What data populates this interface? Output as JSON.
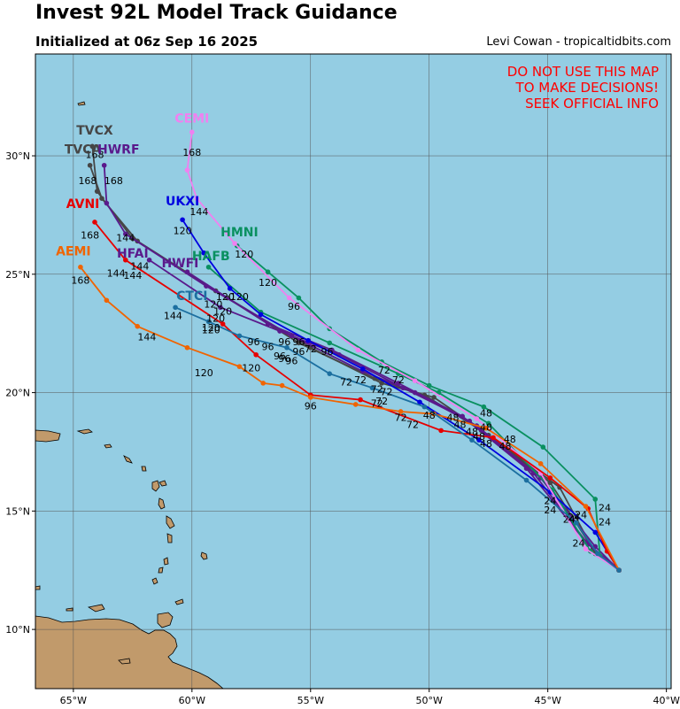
{
  "title": "Invest 92L Model Track Guidance",
  "subtitle": "Initialized at 06z Sep 16 2025",
  "credit": "Levi Cowan - tropicaltidbits.com",
  "warning": [
    "DO NOT USE THIS MAP",
    "TO MAKE DECISIONS!",
    "SEEK OFFICIAL INFO"
  ],
  "colors": {
    "ocean": "#94cde3",
    "land": "#c19a6b",
    "warning": "#ff0000"
  },
  "chart_data": {
    "type": "map",
    "grid": true,
    "xlim": [
      -66.6,
      -39.8
    ],
    "ylim": [
      7.5,
      34.3
    ],
    "x_ticks": [
      {
        "v": -65,
        "label": "65°W"
      },
      {
        "v": -60,
        "label": "60°W"
      },
      {
        "v": -55,
        "label": "55°W"
      },
      {
        "v": -50,
        "label": "50°W"
      },
      {
        "v": -45,
        "label": "45°W"
      },
      {
        "v": -40,
        "label": "40°W"
      }
    ],
    "y_ticks": [
      {
        "v": 10,
        "label": "10°N"
      },
      {
        "v": 15,
        "label": "15°N"
      },
      {
        "v": 20,
        "label": "20°N"
      },
      {
        "v": 25,
        "label": "25°N"
      },
      {
        "v": 30,
        "label": "30°N"
      }
    ],
    "tracks": [
      {
        "name": "TVCX",
        "color": "#464646",
        "label_pos": [
          -64.1,
          30.9
        ],
        "points": [
          [
            -42.0,
            12.5
          ],
          [
            -43.0,
            13.2
          ],
          [
            -44.5,
            16.0
          ],
          [
            -47.5,
            18.2
          ],
          [
            -49.8,
            19.8
          ],
          [
            -52.0,
            20.4
          ],
          [
            -55.0,
            21.9
          ],
          [
            -58.5,
            24.0
          ],
          [
            -62.5,
            26.5
          ],
          [
            -64.0,
            28.5
          ],
          [
            -64.2,
            30.4
          ]
        ],
        "hour_labels": [
          {
            "t": "168",
            "x": -64.1,
            "y": 29.9
          }
        ]
      },
      {
        "name": "TVCA",
        "color": "#464646",
        "label_pos": [
          -64.6,
          30.1
        ],
        "points": [
          [
            -42.0,
            12.5
          ],
          [
            -43.1,
            13.4
          ],
          [
            -44.9,
            16.2
          ],
          [
            -47.8,
            18.4
          ],
          [
            -50.2,
            19.9
          ],
          [
            -52.3,
            20.6
          ],
          [
            -55.5,
            22.1
          ],
          [
            -59.0,
            24.3
          ],
          [
            -62.3,
            26.4
          ],
          [
            -63.8,
            28.2
          ],
          [
            -64.3,
            29.6
          ]
        ],
        "hour_labels": [
          {
            "t": "168",
            "x": -64.4,
            "y": 28.8
          }
        ]
      },
      {
        "name": "HWRF",
        "color": "#5a1a8c",
        "label_pos": [
          -63.1,
          30.1
        ],
        "points": [
          [
            -42.0,
            12.5
          ],
          [
            -43.0,
            13.5
          ],
          [
            -45.3,
            16.4
          ],
          [
            -48.0,
            18.6
          ],
          [
            -50.6,
            20.0
          ],
          [
            -52.8,
            20.9
          ],
          [
            -55.8,
            22.4
          ],
          [
            -59.4,
            24.5
          ],
          [
            -62.8,
            26.7
          ],
          [
            -63.6,
            28.0
          ],
          [
            -63.7,
            29.6
          ]
        ],
        "hour_labels": [
          {
            "t": "168",
            "x": -63.3,
            "y": 28.8
          },
          {
            "t": "144",
            "x": -62.8,
            "y": 26.4
          }
        ]
      },
      {
        "name": "HFAI",
        "color": "#5a1a8c",
        "label_pos": [
          -62.5,
          25.7
        ],
        "points": [
          [
            -42.0,
            12.5
          ],
          [
            -43.3,
            13.6
          ],
          [
            -45.6,
            16.6
          ],
          [
            -48.3,
            18.8
          ],
          [
            -51.1,
            20.2
          ],
          [
            -53.8,
            21.6
          ],
          [
            -56.3,
            22.6
          ],
          [
            -58.8,
            23.6
          ],
          [
            -61.8,
            25.6
          ]
        ],
        "hour_labels": [
          {
            "t": "144",
            "x": -62.5,
            "y": 24.8
          }
        ]
      },
      {
        "name": "HWFI",
        "color": "#5a1a8c",
        "label_pos": [
          -60.5,
          25.3
        ],
        "points": [
          [
            -42.0,
            12.5
          ],
          [
            -43.4,
            13.7
          ],
          [
            -45.9,
            16.8
          ],
          [
            -48.6,
            19.0
          ],
          [
            -51.3,
            20.4
          ],
          [
            -54.1,
            21.8
          ],
          [
            -56.8,
            22.9
          ],
          [
            -60.2,
            25.1
          ]
        ],
        "hour_labels": [
          {
            "t": "120",
            "x": -59.1,
            "y": 23.6
          }
        ]
      },
      {
        "name": "HMNI",
        "color": "#0a9060",
        "label_pos": [
          -58.0,
          26.6
        ],
        "points": [
          [
            -42.0,
            12.5
          ],
          [
            -42.8,
            13.1
          ],
          [
            -43.0,
            15.5
          ],
          [
            -45.2,
            17.7
          ],
          [
            -47.7,
            19.4
          ],
          [
            -50.0,
            20.3
          ],
          [
            -52.0,
            21.3
          ],
          [
            -54.2,
            22.7
          ],
          [
            -55.5,
            24.0
          ],
          [
            -56.8,
            25.1
          ],
          [
            -58.1,
            26.2
          ]
        ],
        "hour_labels": [
          {
            "t": "120",
            "x": -57.8,
            "y": 25.7
          },
          {
            "t": "96",
            "x": -55.7,
            "y": 23.5
          }
        ]
      },
      {
        "name": "HAFB",
        "color": "#0a9060",
        "label_pos": [
          -59.2,
          25.6
        ],
        "points": [
          [
            -42.0,
            12.5
          ],
          [
            -43.2,
            13.3
          ],
          [
            -44.8,
            15.9
          ],
          [
            -47.5,
            18.7
          ],
          [
            -49.6,
            20.0
          ],
          [
            -51.3,
            20.8
          ],
          [
            -54.2,
            22.1
          ],
          [
            -57.1,
            23.4
          ],
          [
            -59.3,
            25.3
          ]
        ],
        "hour_labels": [
          {
            "t": "120",
            "x": -56.8,
            "y": 24.5
          },
          {
            "t": "96",
            "x": -54.3,
            "y": 21.6
          }
        ]
      },
      {
        "name": "UKXI",
        "color": "#0000e0",
        "label_pos": [
          -60.4,
          27.9
        ],
        "points": [
          [
            -42.0,
            12.5
          ],
          [
            -43.0,
            14.1
          ],
          [
            -44.9,
            15.8
          ],
          [
            -47.9,
            18.0
          ],
          [
            -50.4,
            19.6
          ],
          [
            -52.8,
            21.0
          ],
          [
            -55.1,
            22.2
          ],
          [
            -57.1,
            23.3
          ],
          [
            -58.4,
            24.4
          ],
          [
            -59.5,
            25.9
          ],
          [
            -60.4,
            27.3
          ]
        ],
        "hour_labels": [
          {
            "t": "120",
            "x": -60.4,
            "y": 26.7
          },
          {
            "t": "120",
            "x": -58.0,
            "y": 23.9
          }
        ]
      },
      {
        "name": "CEMI",
        "color": "#f080f0",
        "label_pos": [
          -60.0,
          31.4
        ],
        "points": [
          [
            -42.0,
            12.5
          ],
          [
            -43.4,
            13.4
          ],
          [
            -45.3,
            16.6
          ],
          [
            -48.0,
            18.9
          ],
          [
            -50.6,
            20.5
          ],
          [
            -53.0,
            21.8
          ],
          [
            -55.9,
            24.0
          ],
          [
            -58.2,
            26.3
          ],
          [
            -59.8,
            28.2
          ],
          [
            -60.2,
            29.4
          ],
          [
            -60.0,
            31.0
          ]
        ],
        "hour_labels": [
          {
            "t": "168",
            "x": -60.0,
            "y": 30.0
          },
          {
            "t": "144",
            "x": -59.7,
            "y": 27.5
          }
        ]
      },
      {
        "name": "AVNI",
        "color": "#e60000",
        "label_pos": [
          -64.6,
          27.8
        ],
        "points": [
          [
            -42.0,
            12.5
          ],
          [
            -42.5,
            13.3
          ],
          [
            -43.3,
            15.1
          ],
          [
            -44.9,
            16.4
          ],
          [
            -47.3,
            18.1
          ],
          [
            -49.5,
            18.4
          ],
          [
            -52.9,
            19.7
          ],
          [
            -55.0,
            19.9
          ],
          [
            -57.3,
            21.6
          ],
          [
            -58.7,
            22.9
          ],
          [
            -62.8,
            25.6
          ],
          [
            -64.1,
            27.2
          ]
        ],
        "hour_labels": [
          {
            "t": "168",
            "x": -64.3,
            "y": 26.5
          },
          {
            "t": "144",
            "x": -63.2,
            "y": 24.9
          },
          {
            "t": "120",
            "x": -57.5,
            "y": 20.9
          },
          {
            "t": "96",
            "x": -57.4,
            "y": 22.0
          }
        ]
      },
      {
        "name": "AEMI",
        "color": "#f06400",
        "label_pos": [
          -65.0,
          25.8
        ],
        "points": [
          [
            -42.0,
            12.5
          ],
          [
            -43.4,
            15.2
          ],
          [
            -45.3,
            17.0
          ],
          [
            -47.6,
            18.5
          ],
          [
            -49.8,
            19.1
          ],
          [
            -51.2,
            19.2
          ],
          [
            -53.1,
            19.5
          ],
          [
            -55.0,
            19.8
          ],
          [
            -56.2,
            20.3
          ],
          [
            -57.0,
            20.4
          ],
          [
            -58.0,
            21.1
          ],
          [
            -60.2,
            21.9
          ],
          [
            -62.3,
            22.8
          ],
          [
            -63.6,
            23.9
          ],
          [
            -64.7,
            25.3
          ]
        ],
        "hour_labels": [
          {
            "t": "168",
            "x": -64.7,
            "y": 24.6
          },
          {
            "t": "144",
            "x": -61.9,
            "y": 22.2
          },
          {
            "t": "120",
            "x": -59.5,
            "y": 20.7
          },
          {
            "t": "96",
            "x": -55.0,
            "y": 19.3
          }
        ]
      },
      {
        "name": "CTCI",
        "color": "#1c6fa0",
        "label_pos": [
          -60.0,
          23.9
        ],
        "points": [
          [
            -42.0,
            12.5
          ],
          [
            -42.9,
            13.2
          ],
          [
            -43.8,
            14.5
          ],
          [
            -45.9,
            16.3
          ],
          [
            -48.2,
            18.0
          ],
          [
            -50.2,
            19.4
          ],
          [
            -52.4,
            20.2
          ],
          [
            -54.2,
            20.8
          ],
          [
            -56.0,
            21.9
          ],
          [
            -58.0,
            22.4
          ],
          [
            -59.3,
            23.0
          ],
          [
            -60.7,
            23.6
          ]
        ],
        "hour_labels": [
          {
            "t": "144",
            "x": -60.8,
            "y": 23.1
          },
          {
            "t": "120",
            "x": -59.2,
            "y": 22.5
          }
        ]
      }
    ],
    "extra_hour_labels": [
      {
        "t": "24",
        "x": -44.9,
        "y": 15.3
      },
      {
        "t": "24",
        "x": -44.9,
        "y": 14.9
      },
      {
        "t": "24",
        "x": -43.6,
        "y": 14.7
      },
      {
        "t": "24",
        "x": -43.9,
        "y": 14.6
      },
      {
        "t": "24",
        "x": -42.6,
        "y": 15.0
      },
      {
        "t": "24",
        "x": -42.6,
        "y": 14.4
      },
      {
        "t": "24",
        "x": -43.7,
        "y": 13.5
      },
      {
        "t": "24",
        "x": -44.1,
        "y": 14.5
      },
      {
        "t": "48",
        "x": -47.6,
        "y": 19.0
      },
      {
        "t": "48",
        "x": -47.6,
        "y": 18.4
      },
      {
        "t": "48",
        "x": -47.6,
        "y": 17.7
      },
      {
        "t": "48",
        "x": -47.9,
        "y": 18.0
      },
      {
        "t": "48",
        "x": -48.2,
        "y": 18.2
      },
      {
        "t": "48",
        "x": -48.7,
        "y": 18.5
      },
      {
        "t": "48",
        "x": -49.0,
        "y": 18.8
      },
      {
        "t": "48",
        "x": -50.0,
        "y": 18.9
      },
      {
        "t": "48",
        "x": -46.8,
        "y": 17.6
      },
      {
        "t": "48",
        "x": -46.6,
        "y": 17.9
      },
      {
        "t": "72",
        "x": -52.9,
        "y": 20.4
      },
      {
        "t": "72",
        "x": -51.9,
        "y": 20.8
      },
      {
        "t": "72",
        "x": -51.3,
        "y": 20.4
      },
      {
        "t": "72",
        "x": -52.2,
        "y": 20.0
      },
      {
        "t": "72",
        "x": -51.8,
        "y": 19.9
      },
      {
        "t": "72",
        "x": -52.0,
        "y": 19.5
      },
      {
        "t": "72",
        "x": -52.2,
        "y": 19.4
      },
      {
        "t": "72",
        "x": -53.5,
        "y": 20.3
      },
      {
        "t": "72",
        "x": -51.2,
        "y": 18.8
      },
      {
        "t": "72",
        "x": -50.7,
        "y": 18.5
      },
      {
        "t": "72",
        "x": -55.0,
        "y": 21.7
      },
      {
        "t": "96",
        "x": -56.1,
        "y": 22.0
      },
      {
        "t": "96",
        "x": -55.5,
        "y": 21.6
      },
      {
        "t": "96",
        "x": -55.8,
        "y": 21.2
      },
      {
        "t": "96",
        "x": -56.3,
        "y": 21.4
      },
      {
        "t": "96",
        "x": -56.8,
        "y": 21.8
      },
      {
        "t": "96",
        "x": -55.5,
        "y": 22.0
      },
      {
        "t": "96",
        "x": -56.1,
        "y": 21.3
      },
      {
        "t": "120",
        "x": -58.7,
        "y": 23.3
      },
      {
        "t": "120",
        "x": -59.0,
        "y": 23.0
      },
      {
        "t": "120",
        "x": -59.2,
        "y": 22.6
      },
      {
        "t": "120",
        "x": -58.6,
        "y": 23.9
      },
      {
        "t": "144",
        "x": -62.2,
        "y": 25.2
      }
    ]
  }
}
